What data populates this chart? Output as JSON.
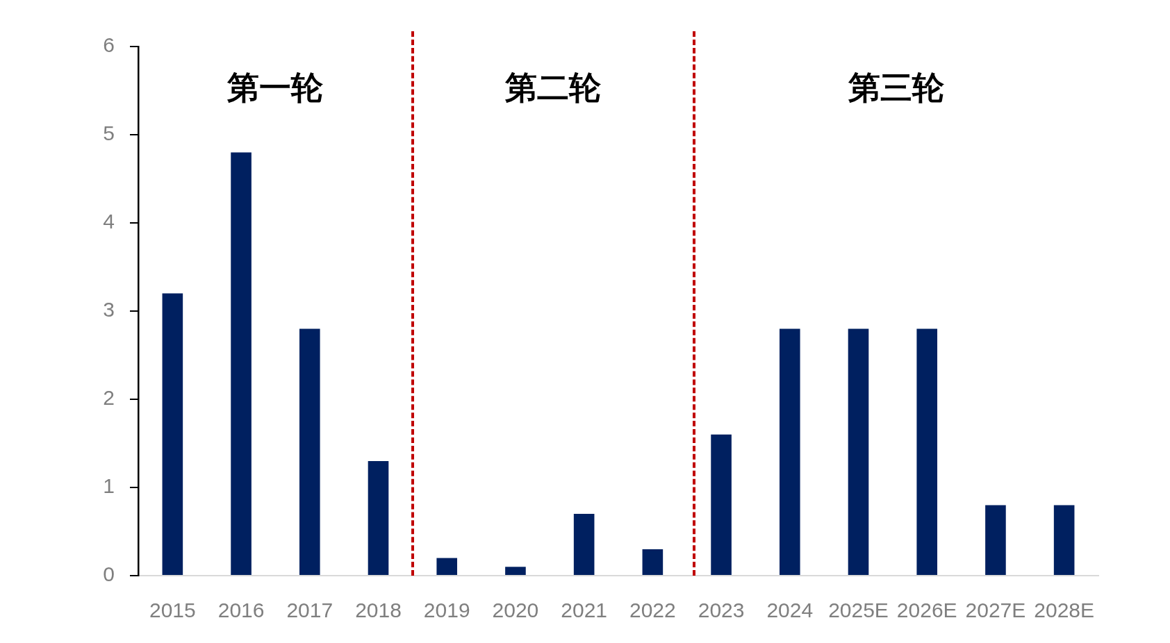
{
  "chart_data": {
    "type": "bar",
    "categories": [
      "2015",
      "2016",
      "2017",
      "2018",
      "2019",
      "2020",
      "2021",
      "2022",
      "2023",
      "2024",
      "2025E",
      "2026E",
      "2027E",
      "2028E"
    ],
    "values": [
      3.2,
      4.8,
      2.8,
      1.3,
      0.2,
      0.1,
      0.7,
      0.3,
      1.6,
      2.8,
      2.8,
      2.8,
      0.8,
      0.8
    ],
    "color": "#002060",
    "ylim": [
      0,
      6
    ],
    "yticks": [
      0,
      1,
      2,
      3,
      4,
      5,
      6
    ],
    "annotations": [
      "第一轮",
      "第二轮",
      "第三轮"
    ]
  }
}
